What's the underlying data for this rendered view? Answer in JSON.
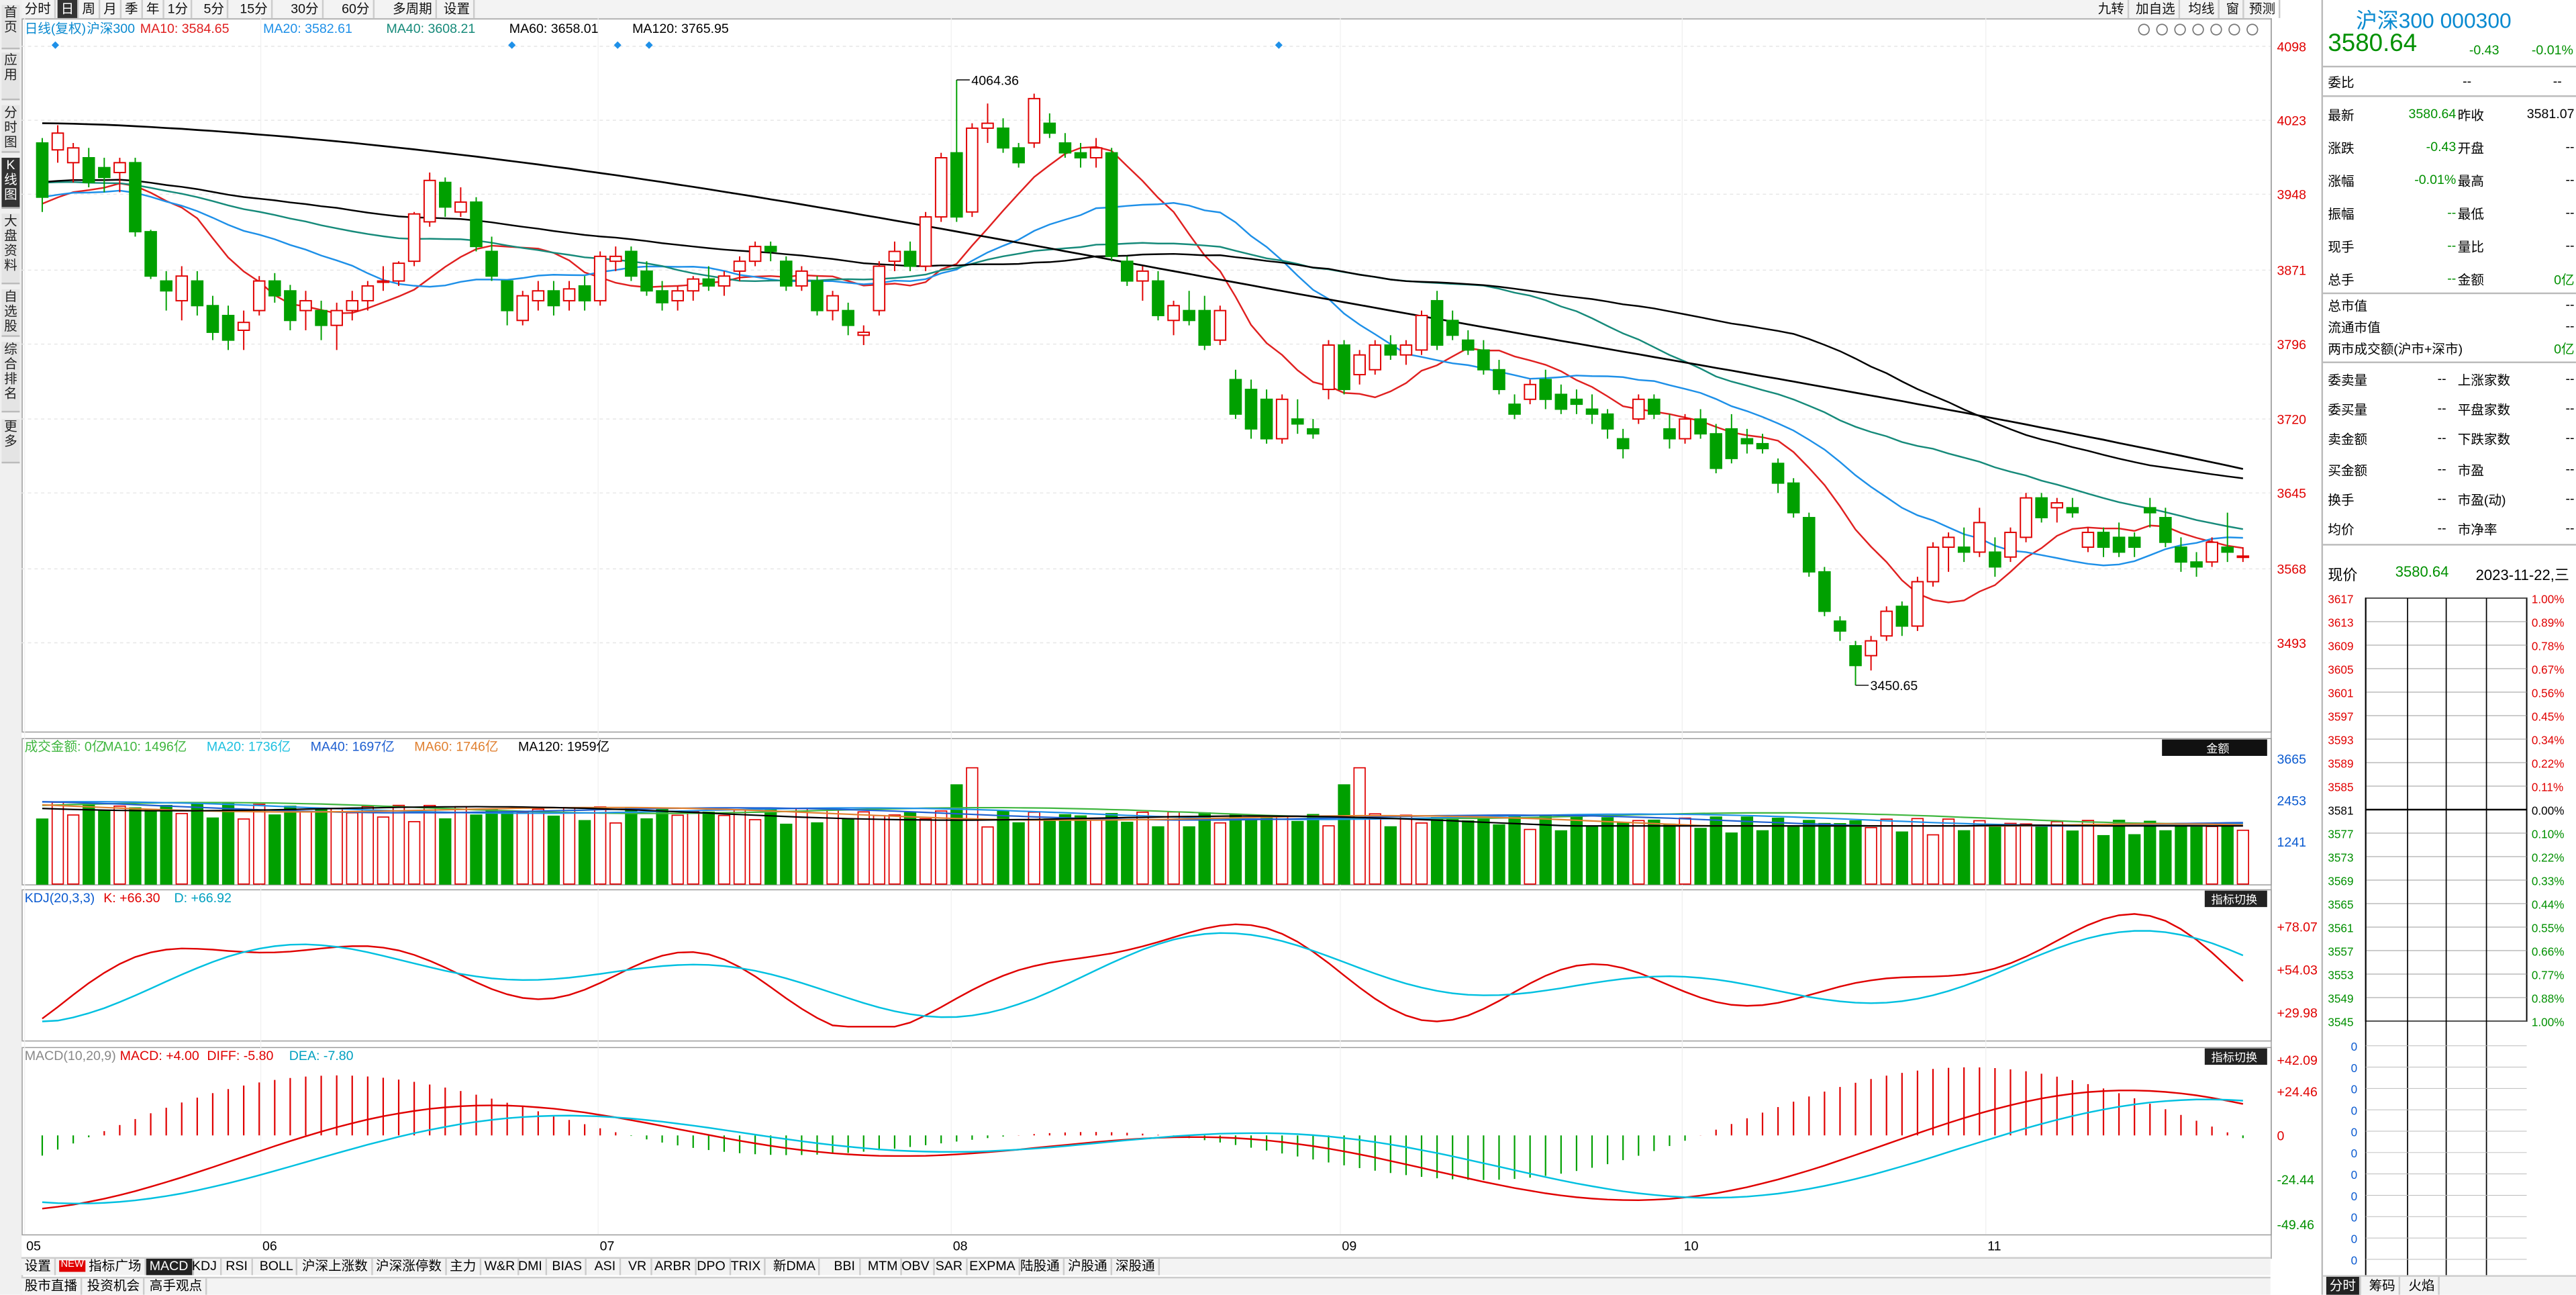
{
  "left_nav": [
    "首页",
    "应用",
    "分时图",
    "K线图",
    "大盘资料",
    "自选股",
    "综合排名",
    "更多"
  ],
  "left_nav_active": 3,
  "top_periods": [
    "分时",
    "日",
    "周",
    "月",
    "季",
    "年",
    "1分",
    "5分",
    "15分",
    "30分",
    "60分",
    "多周期",
    "设置"
  ],
  "top_active": 1,
  "top_right_buttons": [
    "九转",
    "加自选",
    "均线",
    "窗",
    "预测"
  ],
  "main_legend": {
    "name": "日线(复权)",
    "code": "沪深300",
    "ma10": "MA10: 3584.65",
    "ma20": "MA20: 3582.61",
    "ma40": "MA40: 3608.21",
    "ma60": "MA60: 3658.01",
    "ma120": "MA120: 3765.95"
  },
  "price_axis": [
    "4098",
    "4023",
    "3948",
    "3871",
    "3796",
    "3720",
    "3645",
    "3568",
    "3493"
  ],
  "high_label": "4064.36",
  "low_label": "3450.65",
  "x_axis": [
    "05",
    "06",
    "07",
    "08",
    "09",
    "10",
    "11"
  ],
  "vol_legend": {
    "title": "成交金额: 0亿",
    "ma10": "MA10: 1496亿",
    "ma20": "MA20: 1736亿",
    "ma40": "MA40: 1697亿",
    "ma60": "MA60: 1746亿",
    "ma120": "MA120: 1959亿"
  },
  "vol_axis": [
    "3665",
    "2453",
    "1241"
  ],
  "vol_button": "金额",
  "kdj_legend": {
    "title": "KDJ(20,3,3)",
    "k": "K: +66.30",
    "d": "D: +66.92"
  },
  "kdj_axis": [
    "+78.07",
    "+54.03",
    "+29.98"
  ],
  "kdj_button": "指标切换",
  "macd_legend": {
    "title": "MACD(10,20,9)",
    "macd": "MACD: +4.00",
    "diff": "DIFF: -5.80",
    "dea": "DEA: -7.80"
  },
  "macd_axis": [
    "+42.09",
    "+24.46",
    "0",
    "-24.44",
    "-49.46"
  ],
  "macd_button": "指标切换",
  "bottom_tabs": [
    "设置",
    "NEW",
    "指标广场",
    "MACD",
    "KDJ",
    "RSI",
    "BOLL",
    "沪深上涨数",
    "沪深涨停数",
    "主力",
    "W&R",
    "DMI",
    "BIAS",
    "ASI",
    "VR",
    "ARBR",
    "DPO",
    "TRIX",
    "新DMA",
    "BBI",
    "MTM",
    "OBV",
    "SAR",
    "EXPMA",
    "陆股通",
    "沪股通",
    "深股通"
  ],
  "bottom_active": "MACD",
  "bottom_tabs2": [
    "股市直播",
    "投资机会",
    "高手观点"
  ],
  "right": {
    "title": "沪深300 000300",
    "price": "3580.64",
    "change": "-0.43",
    "change_pct": "-0.01%",
    "weibi_label": "委比",
    "weibi_val": "--",
    "weicha_label": "--",
    "rows1": [
      {
        "l1": "最新",
        "v1": "3580.64",
        "l2": "昨收",
        "v2": "3581.07"
      },
      {
        "l1": "涨跌",
        "v1": "-0.43",
        "l2": "开盘",
        "v2": "--"
      },
      {
        "l1": "涨幅",
        "v1": "-0.01%",
        "l2": "最高",
        "v2": "--"
      },
      {
        "l1": "振幅",
        "v1": "--",
        "l2": "最低",
        "v2": "--"
      },
      {
        "l1": "现手",
        "v1": "--",
        "l2": "量比",
        "v2": "--"
      },
      {
        "l1": "总手",
        "v1": "--",
        "l2": "金额",
        "v2": "0亿"
      }
    ],
    "rows2": [
      {
        "l1": "总市值",
        "v1": "--"
      },
      {
        "l1": "流通市值",
        "v1": "--"
      },
      {
        "l1": "两市成交额(沪市+深市)",
        "v1": "0亿"
      }
    ],
    "rows3": [
      {
        "l1": "委卖量",
        "v1": "--",
        "l2": "上涨家数",
        "v2": "--"
      },
      {
        "l1": "委买量",
        "v1": "--",
        "l2": "平盘家数",
        "v2": "--"
      },
      {
        "l1": "卖金额",
        "v1": "--",
        "l2": "下跌家数",
        "v2": "--"
      },
      {
        "l1": "买金额",
        "v1": "--",
        "l2": "市盈",
        "v2": "--"
      },
      {
        "l1": "换手",
        "v1": "--",
        "l2": "市盈(动)",
        "v2": "--"
      },
      {
        "l1": "均价",
        "v1": "--",
        "l2": "市净率",
        "v2": "--"
      }
    ],
    "now_label": "现价",
    "now_price": "3580.64",
    "now_date": "2023-11-22,三",
    "mini_left": [
      "3617",
      "3613",
      "3609",
      "3605",
      "3601",
      "3597",
      "3593",
      "3589",
      "3585",
      "3581",
      "3577",
      "3573",
      "3569",
      "3565",
      "3561",
      "3557",
      "3553",
      "3549",
      "3545"
    ],
    "mini_right": [
      "1.00%",
      "0.89%",
      "0.78%",
      "0.67%",
      "0.56%",
      "0.45%",
      "0.34%",
      "0.22%",
      "0.11%",
      "0.00%",
      "0.10%",
      "0.22%",
      "0.33%",
      "0.44%",
      "0.55%",
      "0.66%",
      "0.77%",
      "0.88%",
      "1.00%"
    ],
    "mini_zero": [
      "0",
      "0",
      "0",
      "0",
      "0",
      "0",
      "0",
      "0",
      "0",
      "0",
      "0"
    ],
    "bottom_tabs": [
      "分时",
      "筹码",
      "火焰"
    ]
  },
  "chart_data": {
    "type": "candlestick",
    "title": "沪深300 日线(复权)",
    "ylim": [
      3420,
      4110
    ],
    "ohlc": [
      [
        4000,
        4005,
        3930,
        3945
      ],
      [
        3993,
        4018,
        3980,
        4010
      ],
      [
        3980,
        4000,
        3960,
        3995
      ],
      [
        3985,
        3995,
        3955,
        3960
      ],
      [
        3975,
        3985,
        3950,
        3965
      ],
      [
        3970,
        3985,
        3950,
        3980
      ],
      [
        3980,
        3985,
        3905,
        3910
      ],
      [
        3910,
        3912,
        3862,
        3865
      ],
      [
        3860,
        3870,
        3830,
        3850
      ],
      [
        3840,
        3875,
        3820,
        3865
      ],
      [
        3860,
        3870,
        3825,
        3835
      ],
      [
        3835,
        3845,
        3800,
        3808
      ],
      [
        3825,
        3835,
        3790,
        3800
      ],
      [
        3810,
        3830,
        3790,
        3818
      ],
      [
        3830,
        3865,
        3825,
        3860
      ],
      [
        3860,
        3868,
        3838,
        3845
      ],
      [
        3850,
        3856,
        3810,
        3820
      ],
      [
        3830,
        3850,
        3810,
        3840
      ],
      [
        3830,
        3840,
        3800,
        3815
      ],
      [
        3815,
        3838,
        3790,
        3830
      ],
      [
        3830,
        3850,
        3820,
        3840
      ],
      [
        3840,
        3860,
        3830,
        3855
      ],
      [
        3860,
        3875,
        3850,
        3860
      ],
      [
        3860,
        3880,
        3855,
        3878
      ],
      [
        3880,
        3930,
        3875,
        3928
      ],
      [
        3920,
        3970,
        3915,
        3962
      ],
      [
        3960,
        3965,
        3925,
        3935
      ],
      [
        3930,
        3955,
        3925,
        3940
      ],
      [
        3940,
        3945,
        3890,
        3895
      ],
      [
        3890,
        3905,
        3860,
        3865
      ],
      [
        3860,
        3860,
        3815,
        3830
      ],
      [
        3820,
        3850,
        3815,
        3845
      ],
      [
        3840,
        3860,
        3830,
        3850
      ],
      [
        3850,
        3860,
        3825,
        3835
      ],
      [
        3840,
        3860,
        3830,
        3852
      ],
      [
        3855,
        3865,
        3830,
        3840
      ],
      [
        3840,
        3890,
        3835,
        3885
      ],
      [
        3880,
        3895,
        3870,
        3885
      ],
      [
        3890,
        3895,
        3860,
        3865
      ],
      [
        3870,
        3880,
        3845,
        3850
      ],
      [
        3850,
        3860,
        3830,
        3838
      ],
      [
        3840,
        3855,
        3830,
        3850
      ],
      [
        3850,
        3865,
        3840,
        3862
      ],
      [
        3862,
        3875,
        3850,
        3855
      ],
      [
        3855,
        3870,
        3845,
        3865
      ],
      [
        3870,
        3885,
        3860,
        3880
      ],
      [
        3880,
        3900,
        3875,
        3895
      ],
      [
        3895,
        3900,
        3880,
        3890
      ],
      [
        3880,
        3885,
        3850,
        3855
      ],
      [
        3855,
        3875,
        3850,
        3870
      ],
      [
        3860,
        3865,
        3825,
        3830
      ],
      [
        3830,
        3850,
        3820,
        3845
      ],
      [
        3830,
        3838,
        3805,
        3815
      ],
      [
        3805,
        3815,
        3795,
        3808
      ],
      [
        3830,
        3880,
        3825,
        3875
      ],
      [
        3880,
        3900,
        3870,
        3890
      ],
      [
        3890,
        3900,
        3870,
        3875
      ],
      [
        3875,
        3930,
        3870,
        3925
      ],
      [
        3925,
        3990,
        3920,
        3985
      ],
      [
        3990,
        4064,
        3920,
        3925
      ],
      [
        3930,
        4020,
        3925,
        4015
      ],
      [
        4015,
        4040,
        4000,
        4020
      ],
      [
        4015,
        4025,
        3990,
        3995
      ],
      [
        3995,
        4000,
        3975,
        3980
      ],
      [
        4000,
        4050,
        3995,
        4045
      ],
      [
        4020,
        4030,
        4005,
        4010
      ],
      [
        4000,
        4010,
        3985,
        3990
      ],
      [
        3990,
        4000,
        3975,
        3985
      ],
      [
        3985,
        4005,
        3975,
        3995
      ],
      [
        3990,
        3995,
        3880,
        3885
      ],
      [
        3880,
        3885,
        3855,
        3860
      ],
      [
        3860,
        3875,
        3840,
        3870
      ],
      [
        3860,
        3870,
        3820,
        3825
      ],
      [
        3820,
        3840,
        3805,
        3835
      ],
      [
        3830,
        3850,
        3815,
        3820
      ],
      [
        3830,
        3845,
        3790,
        3795
      ],
      [
        3800,
        3835,
        3795,
        3830
      ],
      [
        3760,
        3770,
        3720,
        3725
      ],
      [
        3750,
        3760,
        3700,
        3710
      ],
      [
        3740,
        3750,
        3695,
        3700
      ],
      [
        3700,
        3745,
        3695,
        3740
      ],
      [
        3720,
        3740,
        3705,
        3715
      ],
      [
        3710,
        3720,
        3700,
        3705
      ],
      [
        3750,
        3800,
        3740,
        3795
      ],
      [
        3795,
        3800,
        3745,
        3750
      ],
      [
        3765,
        3790,
        3755,
        3785
      ],
      [
        3770,
        3800,
        3765,
        3795
      ],
      [
        3795,
        3805,
        3780,
        3785
      ],
      [
        3785,
        3800,
        3775,
        3795
      ],
      [
        3790,
        3830,
        3785,
        3825
      ],
      [
        3840,
        3850,
        3790,
        3795
      ],
      [
        3820,
        3830,
        3800,
        3805
      ],
      [
        3800,
        3810,
        3785,
        3790
      ],
      [
        3790,
        3800,
        3765,
        3770
      ],
      [
        3770,
        3780,
        3745,
        3750
      ],
      [
        3735,
        3745,
        3720,
        3725
      ],
      [
        3740,
        3760,
        3735,
        3755
      ],
      [
        3760,
        3770,
        3730,
        3740
      ],
      [
        3745,
        3755,
        3725,
        3730
      ],
      [
        3740,
        3750,
        3725,
        3735
      ],
      [
        3730,
        3745,
        3715,
        3725
      ],
      [
        3725,
        3730,
        3700,
        3710
      ],
      [
        3700,
        3710,
        3680,
        3690
      ],
      [
        3720,
        3745,
        3715,
        3740
      ],
      [
        3740,
        3745,
        3720,
        3725
      ],
      [
        3710,
        3725,
        3690,
        3700
      ],
      [
        3700,
        3725,
        3695,
        3720
      ],
      [
        3720,
        3730,
        3700,
        3705
      ],
      [
        3705,
        3715,
        3665,
        3670
      ],
      [
        3710,
        3725,
        3675,
        3680
      ],
      [
        3700,
        3710,
        3685,
        3695
      ],
      [
        3695,
        3705,
        3685,
        3690
      ],
      [
        3675,
        3680,
        3645,
        3655
      ],
      [
        3655,
        3660,
        3620,
        3625
      ],
      [
        3620,
        3625,
        3560,
        3565
      ],
      [
        3565,
        3570,
        3520,
        3525
      ],
      [
        3515,
        3520,
        3495,
        3505
      ],
      [
        3490,
        3495,
        3450,
        3470
      ],
      [
        3480,
        3500,
        3465,
        3495
      ],
      [
        3500,
        3530,
        3495,
        3525
      ],
      [
        3530,
        3535,
        3500,
        3510
      ],
      [
        3510,
        3560,
        3505,
        3555
      ],
      [
        3555,
        3595,
        3550,
        3590
      ],
      [
        3590,
        3605,
        3565,
        3600
      ],
      [
        3590,
        3610,
        3575,
        3585
      ],
      [
        3585,
        3630,
        3580,
        3615
      ],
      [
        3585,
        3600,
        3560,
        3570
      ],
      [
        3580,
        3610,
        3575,
        3605
      ],
      [
        3600,
        3645,
        3595,
        3640
      ],
      [
        3640,
        3645,
        3615,
        3620
      ],
      [
        3630,
        3640,
        3615,
        3635
      ],
      [
        3630,
        3640,
        3620,
        3625
      ],
      [
        3590,
        3610,
        3585,
        3605
      ],
      [
        3605,
        3610,
        3580,
        3590
      ],
      [
        3600,
        3615,
        3580,
        3585
      ],
      [
        3600,
        3605,
        3580,
        3590
      ],
      [
        3630,
        3640,
        3610,
        3625
      ],
      [
        3620,
        3630,
        3590,
        3595
      ],
      [
        3590,
        3600,
        3565,
        3575
      ],
      [
        3575,
        3585,
        3560,
        3570
      ],
      [
        3575,
        3600,
        3570,
        3595
      ],
      [
        3590,
        3625,
        3575,
        3585
      ],
      [
        3580,
        3590,
        3575,
        3581
      ]
    ]
  }
}
